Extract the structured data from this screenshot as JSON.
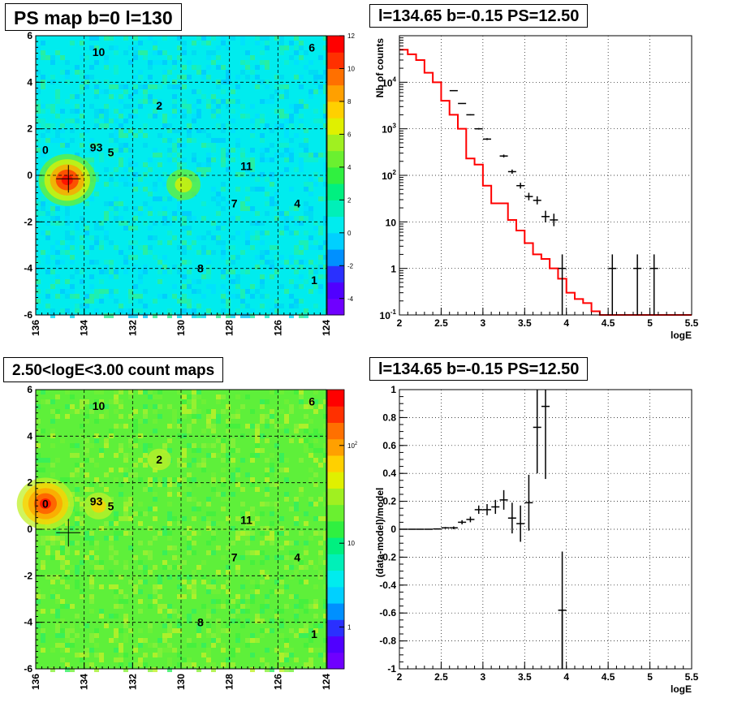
{
  "titles": {
    "map_top": "PS map b=0 l=130",
    "spec_top": "l=134.65 b=-0.15 PS=12.50",
    "map_bottom": "2.50<logE<3.00 count maps",
    "spec_bottom": "l=134.65 b=-0.15 PS=12.50"
  },
  "colors": {
    "model_line": "#ff0000",
    "data": "#000000",
    "grid": "#000000",
    "map_top_background": "#00ecee",
    "map_bottom_background": "#5ef03a"
  },
  "chart_data": [
    {
      "type": "heatmap",
      "title": "PS map b=0 l=130",
      "xlim": [
        136,
        124
      ],
      "ylim": [
        -6,
        6
      ],
      "xticks": [
        "136",
        "134",
        "132",
        "130",
        "128",
        "126",
        "124"
      ],
      "yticks": [
        "6",
        "4",
        "2",
        "0",
        "-2",
        "-4",
        "-6"
      ],
      "colorbar": {
        "min": -5,
        "max": 12,
        "ticks": [
          "12",
          "10",
          "8",
          "6",
          "4",
          "2",
          "0",
          "-2",
          "-4"
        ]
      },
      "sources": [
        {
          "label": "10",
          "l": 133.4,
          "b": 5.3
        },
        {
          "label": "6",
          "l": 124.6,
          "b": 5.5
        },
        {
          "label": "2",
          "l": 130.9,
          "b": 3.0
        },
        {
          "label": "0",
          "l": 135.6,
          "b": 1.1
        },
        {
          "label": "93",
          "l": 133.5,
          "b": 1.2
        },
        {
          "label": "5",
          "l": 132.9,
          "b": 1.0
        },
        {
          "label": "11",
          "l": 127.3,
          "b": 0.4
        },
        {
          "label": "7",
          "l": 127.8,
          "b": -1.2
        },
        {
          "label": "4",
          "l": 125.2,
          "b": -1.2
        },
        {
          "label": "8",
          "l": 129.2,
          "b": -4.0
        },
        {
          "label": "1",
          "l": 124.5,
          "b": -4.5
        }
      ],
      "cross": {
        "l": 134.65,
        "b": -0.15
      },
      "hotspots": [
        {
          "l": 134.7,
          "b": -0.2,
          "value": 12
        },
        {
          "l": 129.9,
          "b": -0.4,
          "value": 5
        }
      ]
    },
    {
      "type": "line",
      "title": "l=134.65 b=-0.15 PS=12.50",
      "xlabel": "logE",
      "ylabel": "Nb of counts",
      "xlim": [
        2,
        5.5
      ],
      "ylim": [
        0.1,
        100000
      ],
      "yscale": "log",
      "grid": true,
      "xticks": [
        "2",
        "2.5",
        "3",
        "3.5",
        "4",
        "4.5",
        "5",
        "5.5"
      ],
      "yticks": [
        {
          "value": 0.1,
          "label": "10",
          "sup": "-1"
        },
        {
          "value": 1,
          "label": "1"
        },
        {
          "value": 10,
          "label": "10"
        },
        {
          "value": 100,
          "label": "10",
          "sup": "2"
        },
        {
          "value": 1000,
          "label": "10",
          "sup": "3"
        },
        {
          "value": 10000,
          "label": "10",
          "sup": "4"
        }
      ],
      "model_edges": [
        2.0,
        2.1,
        2.2,
        2.3,
        2.4,
        2.5,
        2.6,
        2.7,
        2.8,
        2.9,
        3.0,
        3.1,
        3.2,
        3.3,
        3.4,
        3.5,
        3.6,
        3.7,
        3.8,
        3.9,
        4.0,
        4.1,
        4.2,
        4.3,
        4.4,
        4.5,
        4.6,
        4.7,
        4.8,
        4.9,
        5.0,
        5.1,
        5.2,
        5.3,
        5.4,
        5.5
      ],
      "model_values": [
        50000,
        40000,
        30000,
        16000,
        10000,
        4000,
        2000,
        1000,
        230,
        170,
        60,
        25,
        25,
        11,
        6.5,
        3.5,
        2.0,
        1.6,
        1.0,
        0.6,
        0.3,
        0.22,
        0.18,
        0.12,
        0.1,
        0.1,
        0.1,
        0.1,
        0.1,
        0.1,
        0.1,
        0.1,
        0.1,
        0.1,
        0.1
      ],
      "data_points": [
        {
          "x": 2.65,
          "y": 6600
        },
        {
          "x": 2.75,
          "y": 3500
        },
        {
          "x": 2.85,
          "y": 2000
        },
        {
          "x": 2.95,
          "y": 1000
        },
        {
          "x": 3.05,
          "y": 600
        },
        {
          "x": 3.25,
          "y": 260
        },
        {
          "x": 3.35,
          "y": 120
        },
        {
          "x": 3.45,
          "y": 60
        },
        {
          "x": 3.55,
          "y": 35
        },
        {
          "x": 3.65,
          "y": 29
        },
        {
          "x": 3.75,
          "y": 13
        },
        {
          "x": 3.85,
          "y": 11
        },
        {
          "x": 3.95,
          "y": 1,
          "err_low": 0.1,
          "err_high": 2
        },
        {
          "x": 4.55,
          "y": 1,
          "err_low": 0.1,
          "err_high": 2
        },
        {
          "x": 4.85,
          "y": 1,
          "err_low": 0.1,
          "err_high": 2
        },
        {
          "x": 5.05,
          "y": 1,
          "err_low": 0.1,
          "err_high": 2
        }
      ]
    },
    {
      "type": "heatmap",
      "title": "2.50<logE<3.00 count maps",
      "xlim": [
        136,
        124
      ],
      "ylim": [
        -6,
        6
      ],
      "xticks": [
        "136",
        "134",
        "132",
        "130",
        "128",
        "126",
        "124"
      ],
      "yticks": [
        "6",
        "4",
        "2",
        "0",
        "-2",
        "-4",
        "-6"
      ],
      "colorbar": {
        "scale": "log",
        "ticks": [
          {
            "label": "10",
            "sup": "2"
          },
          {
            "label": "10"
          },
          {
            "label": "1"
          }
        ]
      },
      "sources": [
        {
          "label": "10",
          "l": 133.4,
          "b": 5.3
        },
        {
          "label": "6",
          "l": 124.6,
          "b": 5.5
        },
        {
          "label": "2",
          "l": 130.9,
          "b": 3.0
        },
        {
          "label": "0",
          "l": 135.6,
          "b": 1.1
        },
        {
          "label": "93",
          "l": 133.5,
          "b": 1.2
        },
        {
          "label": "5",
          "l": 132.9,
          "b": 1.0
        },
        {
          "label": "11",
          "l": 127.3,
          "b": 0.4
        },
        {
          "label": "7",
          "l": 127.8,
          "b": -1.2
        },
        {
          "label": "4",
          "l": 125.2,
          "b": -1.2
        },
        {
          "label": "8",
          "l": 129.2,
          "b": -4.0
        },
        {
          "label": "1",
          "l": 124.5,
          "b": -4.5
        }
      ],
      "cross": {
        "l": 134.65,
        "b": -0.15
      },
      "hotspots": [
        {
          "l": 135.6,
          "b": 1.1,
          "value": 200
        },
        {
          "l": 133.4,
          "b": 1.0,
          "value": 60
        },
        {
          "l": 130.9,
          "b": 3.0,
          "value": 30
        }
      ]
    },
    {
      "type": "scatter",
      "title": "l=134.65 b=-0.15 PS=12.50",
      "xlabel": "logE",
      "ylabel": "(data-model)/model",
      "xlim": [
        2,
        5.5
      ],
      "ylim": [
        -1,
        1
      ],
      "grid": true,
      "xticks": [
        "2",
        "2.5",
        "3",
        "3.5",
        "4",
        "4.5",
        "5",
        "5.5"
      ],
      "yticks": [
        "1",
        "0.8",
        "0.6",
        "0.4",
        "0.2",
        "0",
        "-0.2",
        "-0.4",
        "-0.6",
        "-0.8",
        "-1"
      ],
      "points": [
        {
          "x": 2.05,
          "y": 0.0,
          "err": 0.003
        },
        {
          "x": 2.15,
          "y": 0.0,
          "err": 0.003
        },
        {
          "x": 2.25,
          "y": 0.0,
          "err": 0.003
        },
        {
          "x": 2.35,
          "y": 0.0,
          "err": 0.003
        },
        {
          "x": 2.45,
          "y": 0.002,
          "err": 0.004
        },
        {
          "x": 2.55,
          "y": 0.01,
          "err": 0.006
        },
        {
          "x": 2.65,
          "y": 0.01,
          "err": 0.01
        },
        {
          "x": 2.75,
          "y": 0.05,
          "err": 0.015
        },
        {
          "x": 2.85,
          "y": 0.07,
          "err": 0.02
        },
        {
          "x": 2.95,
          "y": 0.14,
          "err": 0.03
        },
        {
          "x": 3.05,
          "y": 0.14,
          "err": 0.04
        },
        {
          "x": 3.15,
          "y": 0.16,
          "err": 0.05
        },
        {
          "x": 3.25,
          "y": 0.21,
          "err": 0.07
        },
        {
          "x": 3.35,
          "y": 0.08,
          "err": 0.11
        },
        {
          "x": 3.45,
          "y": 0.04,
          "err": 0.13
        },
        {
          "x": 3.55,
          "y": 0.19,
          "err": 0.2
        },
        {
          "x": 3.65,
          "y": 0.73,
          "err": 0.33
        },
        {
          "x": 3.75,
          "y": 0.88,
          "err": 0.52
        },
        {
          "x": 3.95,
          "y": -0.58,
          "err": 0.42
        }
      ]
    }
  ]
}
